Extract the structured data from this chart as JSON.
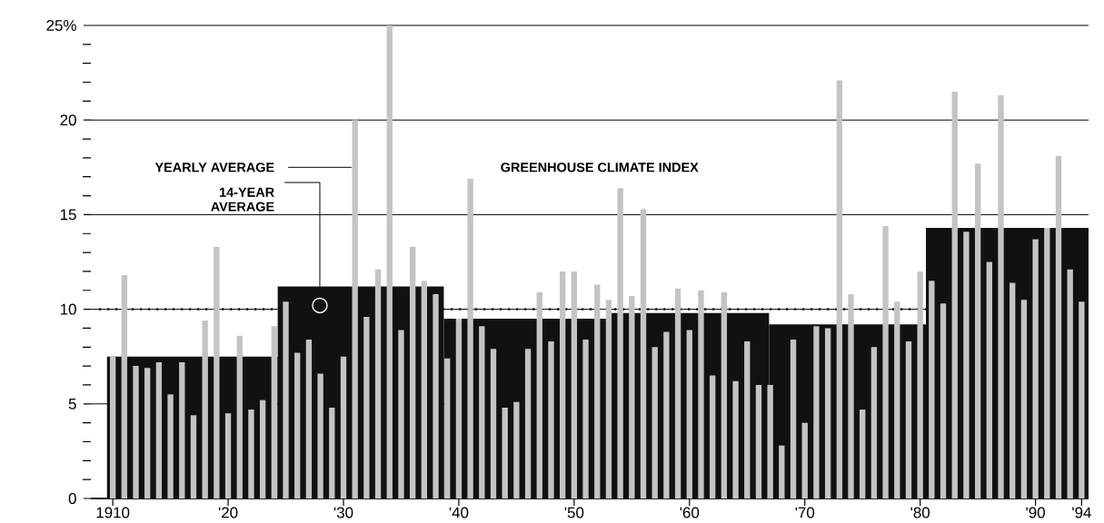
{
  "chart_data": {
    "type": "bar",
    "title": "GREENHOUSE CLIMATE INDEX",
    "x": [
      1910,
      1911,
      1912,
      1913,
      1914,
      1915,
      1916,
      1917,
      1918,
      1919,
      1920,
      1921,
      1922,
      1923,
      1924,
      1925,
      1926,
      1927,
      1928,
      1929,
      1930,
      1931,
      1932,
      1933,
      1934,
      1935,
      1936,
      1937,
      1938,
      1939,
      1940,
      1941,
      1942,
      1943,
      1944,
      1945,
      1946,
      1947,
      1948,
      1949,
      1950,
      1951,
      1952,
      1953,
      1954,
      1955,
      1956,
      1957,
      1958,
      1959,
      1960,
      1961,
      1962,
      1963,
      1964,
      1965,
      1966,
      1967,
      1968,
      1969,
      1970,
      1971,
      1972,
      1973,
      1974,
      1975,
      1976,
      1977,
      1978,
      1979,
      1980,
      1981,
      1982,
      1983,
      1984,
      1985,
      1986,
      1987,
      1988,
      1989,
      1990,
      1991,
      1992,
      1993,
      1994
    ],
    "series": [
      {
        "name": "14-YEAR AVERAGE",
        "type": "histogram",
        "color": "#111111",
        "bins": [
          1909.5,
          1924.3,
          1938.7,
          1953.2,
          1966.9,
          1980.5,
          1994.6
        ],
        "values": [
          7.5,
          11.2,
          9.5,
          9.8,
          9.2,
          14.3
        ]
      },
      {
        "name": "YEARLY AVERAGE",
        "color": "#c4c4c4",
        "values": [
          7.5,
          11.8,
          7.0,
          6.9,
          7.2,
          5.5,
          7.2,
          4.4,
          9.4,
          13.3,
          4.5,
          8.6,
          4.7,
          5.2,
          9.1,
          10.4,
          7.7,
          8.4,
          6.6,
          4.8,
          7.5,
          20.0,
          9.6,
          12.1,
          25,
          8.9,
          13.3,
          11.5,
          10.8,
          7.4,
          9.5,
          16.9,
          9.1,
          7.9,
          4.8,
          5.1,
          7.9,
          10.9,
          8.3,
          12.0,
          12.0,
          8.4,
          11.3,
          10.5,
          16.4,
          10.7,
          15.3,
          8.0,
          8.8,
          11.1,
          8.9,
          11.0,
          6.5,
          10.9,
          6.2,
          8.3,
          6.0,
          6.0,
          2.8,
          8.4,
          4.0,
          9.1,
          9.0,
          22.1,
          10.8,
          4.7,
          8.0,
          14.4,
          10.4,
          8.3,
          12.0,
          11.5,
          10.3,
          21.5,
          14.1,
          17.7,
          12.5,
          21.3,
          11.4,
          10.5,
          13.7,
          14.3,
          18.1,
          12.1,
          10.4
        ]
      }
    ],
    "xlim": [
      1908.1,
      1994.6
    ],
    "xticks": [
      1910,
      {
        "value": 1920,
        "label": "'20"
      },
      {
        "value": 1930,
        "label": "'30"
      },
      {
        "value": 1940,
        "label": "'40"
      },
      {
        "value": 1950,
        "label": "'50"
      },
      {
        "value": 1960,
        "label": "'60"
      },
      {
        "value": 1970,
        "label": "'70"
      },
      {
        "value": 1980,
        "label": "'80"
      },
      {
        "value": 1990,
        "label": "'90"
      },
      {
        "value": 1994,
        "label": "'94"
      }
    ],
    "ylim": [
      0,
      25
    ],
    "yticks": [
      0,
      5,
      10,
      15,
      20,
      {
        "value": 25,
        "label": "25%"
      }
    ],
    "grid": "y",
    "ref_lines": [
      {
        "axis": "y",
        "value": 10,
        "line_style": "dotted"
      }
    ]
  }
}
